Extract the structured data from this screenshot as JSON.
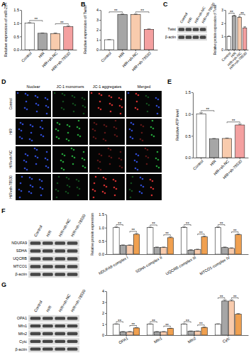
{
  "chart_data": [
    {
      "type": "bar",
      "panel": "A",
      "y_label": "Relative expression of miR-214",
      "categories": [
        "Control",
        "H/R",
        "H/R+sh-NC",
        "H/R+sh-78530"
      ],
      "values": [
        1.0,
        0.62,
        0.61,
        0.87
      ],
      "errors": [
        0.02,
        0.01,
        0.02,
        0.03
      ],
      "colors": [
        "#ffffff",
        "#a6a6a6",
        "#f8cbad",
        "#f4a0a0"
      ],
      "ylim": [
        0,
        1.5
      ],
      "yticks": [
        {
          "value": 0,
          "label": "0.0"
        },
        {
          "value": 0.5,
          "label": "0.5"
        },
        {
          "value": 1,
          "label": "1.0"
        },
        {
          "value": 1.5,
          "label": "1.5"
        }
      ],
      "annotations": [
        {
          "text": "**",
          "pair": [
            "Control",
            "H/R"
          ]
        },
        {
          "text": "**",
          "pair": [
            "H/R+sh-NC",
            "H/R+sh-78530"
          ]
        }
      ]
    },
    {
      "type": "bar",
      "panel": "B",
      "y_label": "Relative expression of Twist",
      "categories": [
        "Control",
        "H/R",
        "H/R+sh-NC",
        "H/R+sh-78530"
      ],
      "values": [
        1.0,
        3.55,
        3.55,
        2.05
      ],
      "errors": [
        0.02,
        0.04,
        0.04,
        0.04
      ],
      "colors": [
        "#ffffff",
        "#a6a6a6",
        "#f8cbad",
        "#f4a0a0"
      ],
      "ylim": [
        0,
        4
      ],
      "yticks": [
        0,
        1,
        2,
        3,
        4
      ],
      "annotations": [
        {
          "text": "**",
          "pair": [
            "Control",
            "H/R"
          ]
        },
        {
          "text": "**",
          "pair": [
            "H/R+sh-NC",
            "H/R+sh-78530"
          ]
        }
      ]
    },
    {
      "type": "bar",
      "panel": "C",
      "y_label": "Relative protein expression of Twist",
      "blot": [
        "Twist",
        "β-actin"
      ],
      "categories": [
        "Control",
        "H/R",
        "H/R+sh-NC",
        "H/R+sh-78530"
      ],
      "values": [
        1.0,
        2.55,
        2.45,
        1.65
      ],
      "errors": [
        0.03,
        0.05,
        0.06,
        0.08
      ],
      "colors": [
        "#ffffff",
        "#a6a6a6",
        "#f8cbad",
        "#f4a0a0"
      ],
      "ylim": [
        0,
        3
      ],
      "yticks": [
        0,
        1,
        2,
        3
      ],
      "annotations": [
        {
          "text": "**",
          "pair": [
            "Control",
            "H/R"
          ]
        },
        {
          "text": "**",
          "pair": [
            "H/R+sh-NC",
            "H/R+sh-78530"
          ]
        }
      ]
    },
    {
      "type": "bar",
      "panel": "E",
      "y_label": "Relative ATP level",
      "categories": [
        "Control",
        "H/R",
        "H/R+sh-NC",
        "H/R+sh-78530"
      ],
      "values": [
        1.0,
        0.43,
        0.44,
        0.75
      ],
      "errors": [
        0.03,
        0.01,
        0.01,
        0.02
      ],
      "colors": [
        "#ffffff",
        "#a6a6a6",
        "#f8cbad",
        "#f4a0a0"
      ],
      "ylim": [
        0,
        1.5
      ],
      "yticks": [
        {
          "value": 0,
          "label": "0.0"
        },
        {
          "value": 0.5,
          "label": "0.5"
        },
        {
          "value": 1,
          "label": "1.0"
        },
        {
          "value": 1.5,
          "label": "1.5"
        }
      ],
      "annotations": [
        {
          "text": "**",
          "pair": [
            "Control",
            "H/R"
          ]
        },
        {
          "text": "**",
          "pair": [
            "H/R+sh-NC",
            "H/R+sh-78530"
          ]
        }
      ]
    },
    {
      "type": "bar",
      "panel": "F",
      "y_label": "Relative protein expression",
      "blot": [
        "NDUFA9",
        "SDHA",
        "UQCRB",
        "MTCO1",
        "β-actin"
      ],
      "categories": [
        "NDUFA9-complex I",
        "SDHA-complex II",
        "UQCRB-complex III",
        "MTCO1-complex IV"
      ],
      "series": [
        {
          "name": "Control",
          "color": "#ffffff",
          "values": [
            1.0,
            1.0,
            1.0,
            1.0
          ],
          "errors": [
            0.03,
            0.02,
            0.03,
            0.03
          ]
        },
        {
          "name": "H/R",
          "color": "#a6a6a6",
          "values": [
            0.33,
            0.25,
            0.15,
            0.25
          ],
          "errors": [
            0.02,
            0.02,
            0.02,
            0.02
          ]
        },
        {
          "name": "H/R+sh-NC",
          "color": "#f8cbad",
          "values": [
            0.33,
            0.25,
            0.17,
            0.22
          ],
          "errors": [
            0.02,
            0.02,
            0.02,
            0.02
          ]
        },
        {
          "name": "H/R+sh-78530",
          "color": "#f0a050",
          "values": [
            0.75,
            0.62,
            0.65,
            0.73
          ],
          "errors": [
            0.03,
            0.03,
            0.03,
            0.03
          ]
        }
      ],
      "ylim": [
        0,
        1.5
      ],
      "yticks": [
        {
          "value": 0,
          "label": "0.0"
        },
        {
          "value": 0.5,
          "label": "0.5"
        },
        {
          "value": 1,
          "label": "1.0"
        },
        {
          "value": 1.5,
          "label": "1.5"
        }
      ],
      "annotations": [
        {
          "text": "**",
          "category": "NDUFA9-complex I",
          "pair": [
            "Control",
            "H/R"
          ]
        },
        {
          "text": "**",
          "category": "NDUFA9-complex I",
          "pair": [
            "H/R+sh-NC",
            "H/R+sh-78530"
          ]
        },
        {
          "text": "**",
          "category": "SDHA-complex II",
          "pair": [
            "Control",
            "H/R"
          ]
        },
        {
          "text": "**",
          "category": "SDHA-complex II",
          "pair": [
            "H/R+sh-NC",
            "H/R+sh-78530"
          ]
        },
        {
          "text": "**",
          "category": "UQCRB-complex III",
          "pair": [
            "Control",
            "H/R"
          ]
        },
        {
          "text": "**",
          "category": "UQCRB-complex III",
          "pair": [
            "H/R+sh-NC",
            "H/R+sh-78530"
          ]
        },
        {
          "text": "**",
          "category": "MTCO1-complex IV",
          "pair": [
            "Control",
            "H/R"
          ]
        },
        {
          "text": "**",
          "category": "MTCO1-complex IV",
          "pair": [
            "H/R+sh-NC",
            "H/R+sh-78530"
          ]
        }
      ]
    },
    {
      "type": "bar",
      "panel": "G",
      "blot": [
        "OPA1",
        "Mfn1",
        "Mfn2",
        "Cytc",
        "β-actin"
      ],
      "categories": [
        "OPA1",
        "Mfn1",
        "Mfn2",
        "Cytc"
      ],
      "series": [
        {
          "name": "Control",
          "color": "#ffffff",
          "values": [
            1.0,
            1.0,
            1.0,
            1.0
          ],
          "errors": [
            0.03,
            0.03,
            0.03,
            0.03
          ]
        },
        {
          "name": "H/R",
          "color": "#a6a6a6",
          "values": [
            0.3,
            0.3,
            0.35,
            3.1
          ],
          "errors": [
            0.03,
            0.03,
            0.03,
            0.1
          ]
        },
        {
          "name": "H/R+sh-NC",
          "color": "#f8cbad",
          "values": [
            0.3,
            0.3,
            0.35,
            3.1
          ],
          "errors": [
            0.03,
            0.03,
            0.03,
            0.1
          ]
        },
        {
          "name": "H/R+sh-78530",
          "color": "#f0a050",
          "values": [
            0.65,
            0.6,
            0.7,
            1.9
          ],
          "errors": [
            0.03,
            0.03,
            0.03,
            0.06
          ]
        }
      ],
      "ylim": [
        0,
        4
      ],
      "yticks": [
        0,
        1,
        2,
        3,
        4
      ],
      "annotations": [
        {
          "text": "**",
          "category": "OPA1",
          "pair": [
            "Control",
            "H/R"
          ]
        },
        {
          "text": "**",
          "category": "OPA1",
          "pair": [
            "H/R+sh-NC",
            "H/R+sh-78530"
          ]
        },
        {
          "text": "**",
          "category": "Mfn1",
          "pair": [
            "Control",
            "H/R"
          ]
        },
        {
          "text": "**",
          "category": "Mfn1",
          "pair": [
            "H/R+sh-NC",
            "H/R+sh-78530"
          ]
        },
        {
          "text": "**",
          "category": "Mfn2",
          "pair": [
            "Control",
            "H/R"
          ]
        },
        {
          "text": "**",
          "category": "Mfn2",
          "pair": [
            "H/R+sh-NC",
            "H/R+sh-78530"
          ]
        },
        {
          "text": "**",
          "category": "Cytc",
          "pair": [
            "Control",
            "H/R"
          ]
        },
        {
          "text": "**",
          "category": "Cytc",
          "pair": [
            "H/R+sh-NC",
            "H/R+sh-78530"
          ]
        }
      ]
    }
  ],
  "microscopy": {
    "panel": "D",
    "columns": [
      "Nuclear",
      "JC-1 monomers",
      "JC-1 aggregates",
      "Merged"
    ],
    "rows": [
      "Control",
      "H/R",
      "H/R+sh-NC",
      "H/R+sh-78530"
    ]
  }
}
